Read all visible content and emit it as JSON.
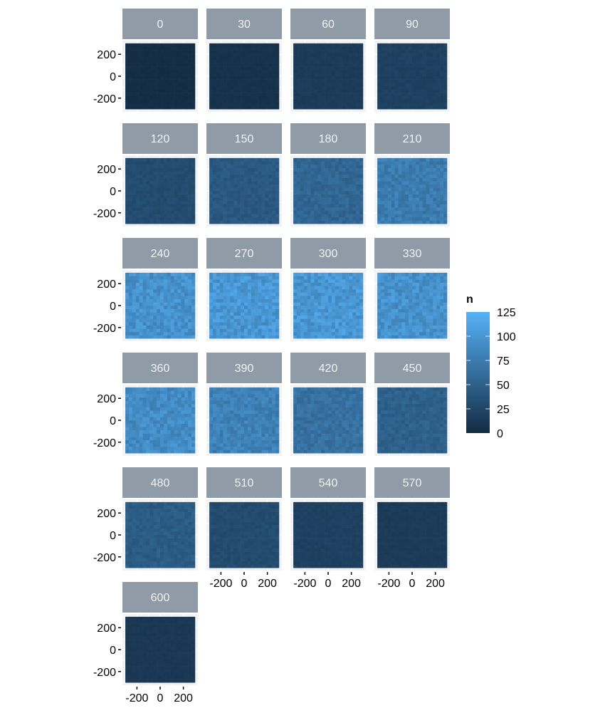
{
  "chart_data": {
    "type": "heatmap",
    "facet_labels": [
      "0",
      "30",
      "60",
      "90",
      "120",
      "150",
      "180",
      "210",
      "240",
      "270",
      "300",
      "330",
      "360",
      "390",
      "420",
      "450",
      "480",
      "510",
      "540",
      "570",
      "600"
    ],
    "facet_mean_n": [
      2,
      6,
      15,
      20,
      30,
      42,
      55,
      75,
      95,
      100,
      100,
      95,
      90,
      80,
      65,
      50,
      45,
      30,
      20,
      15,
      12
    ],
    "x_ticks": [
      "-200",
      "0",
      "200"
    ],
    "y_ticks": [
      "200",
      "0",
      "-200"
    ],
    "x_range": [
      -325,
      325
    ],
    "y_range": [
      -325,
      325
    ],
    "bins_per_axis": 20,
    "legend": {
      "title": "n",
      "ticks": [
        "125",
        "100",
        "75",
        "50",
        "25",
        "0"
      ],
      "range": [
        0,
        125
      ],
      "placement": "right"
    },
    "colors": {
      "low": "#132B43",
      "high": "#56B1F7",
      "strip": "#8F9BA6",
      "strip_text": "#F2F2F2",
      "panel_bg": "#F2F2F2"
    }
  }
}
